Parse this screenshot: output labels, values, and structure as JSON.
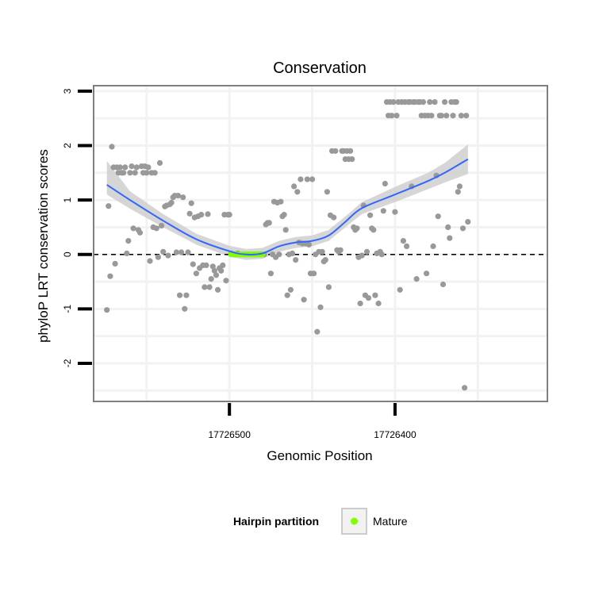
{
  "chart_data": {
    "type": "scatter",
    "title": "Conservation",
    "xlabel": "Genomic Position",
    "ylabel": "phyloP LRT conservation scores",
    "x_reversed": true,
    "xlim": [
      17726582,
      17726308
    ],
    "ylim": [
      -2.7,
      3.1
    ],
    "x_ticks": [
      17726500,
      17726400
    ],
    "y_ticks": [
      -2,
      -1,
      0,
      1,
      2,
      3
    ],
    "grid": true,
    "reference_line": {
      "y": 0,
      "style": "dashed",
      "color": "#000000"
    },
    "colors": {
      "points": "#999999",
      "smooth": "#3366ff",
      "ribbon": "#cccccc",
      "mature": "#7fff00",
      "panel_border": "#7f7f7f",
      "grid": "#f2f2f2"
    },
    "series": [
      {
        "type": "scatter",
        "points": [
          [
            17726574,
            -1.02
          ],
          [
            17726573,
            0.89
          ],
          [
            17726572,
            -0.4
          ],
          [
            17726571,
            1.98
          ],
          [
            17726570,
            1.6
          ],
          [
            17726569,
            -0.17
          ],
          [
            17726568,
            1.6
          ],
          [
            17726567,
            1.5
          ],
          [
            17726566,
            1.6
          ],
          [
            17726565,
            1.5
          ],
          [
            17726564,
            1.5
          ],
          [
            17726563,
            1.6
          ],
          [
            17726562,
            0.02
          ],
          [
            17726561,
            0.25
          ],
          [
            17726560,
            1.5
          ],
          [
            17726559,
            1.62
          ],
          [
            17726558,
            0.48
          ],
          [
            17726557,
            1.5
          ],
          [
            17726556,
            1.6
          ],
          [
            17726555,
            0.45
          ],
          [
            17726554,
            0.4
          ],
          [
            17726553,
            1.62
          ],
          [
            17726552,
            1.5
          ],
          [
            17726551,
            1.62
          ],
          [
            17726550,
            1.5
          ],
          [
            17726549,
            1.6
          ],
          [
            17726548,
            -0.12
          ],
          [
            17726547,
            1.5
          ],
          [
            17726546,
            0.5
          ],
          [
            17726545,
            1.5
          ],
          [
            17726544,
            0.48
          ],
          [
            17726543,
            -0.05
          ],
          [
            17726542,
            1.68
          ],
          [
            17726541,
            0.53
          ],
          [
            17726540,
            0.05
          ],
          [
            17726539,
            0.88
          ],
          [
            17726538,
            0.9
          ],
          [
            17726537,
            -0.02
          ],
          [
            17726536,
            0.92
          ],
          [
            17726535,
            0.95
          ],
          [
            17726534,
            1.05
          ],
          [
            17726533,
            1.08
          ],
          [
            17726532,
            0.04
          ],
          [
            17726531,
            1.08
          ],
          [
            17726530,
            -0.75
          ],
          [
            17726529,
            0.04
          ],
          [
            17726528,
            1.05
          ],
          [
            17726527,
            -1.0
          ],
          [
            17726526,
            -0.75
          ],
          [
            17726525,
            0.04
          ],
          [
            17726524,
            0.75
          ],
          [
            17726523,
            0.94
          ],
          [
            17726522,
            -0.18
          ],
          [
            17726521,
            0.68
          ],
          [
            17726520,
            -0.35
          ],
          [
            17726519,
            0.7
          ],
          [
            17726518,
            -0.25
          ],
          [
            17726517,
            0.73
          ],
          [
            17726516,
            -0.2
          ],
          [
            17726515,
            -0.6
          ],
          [
            17726514,
            -0.2
          ],
          [
            17726513,
            0.74
          ],
          [
            17726512,
            -0.6
          ],
          [
            17726511,
            -0.45
          ],
          [
            17726510,
            -0.22
          ],
          [
            17726509,
            -0.3
          ],
          [
            17726508,
            -0.38
          ],
          [
            17726507,
            -0.65
          ],
          [
            17726506,
            -0.25
          ],
          [
            17726505,
            -0.3
          ],
          [
            17726504,
            -0.2
          ],
          [
            17726503,
            0.73
          ],
          [
            17726502,
            -0.48
          ],
          [
            17726501,
            0.73
          ],
          [
            17726500,
            0.73
          ],
          [
            17726499,
            0.02
          ],
          [
            17726498,
            0.0
          ],
          [
            17726497,
            0.0
          ],
          [
            17726496,
            0.0
          ],
          [
            17726495,
            0.02
          ],
          [
            17726494,
            0.0
          ],
          [
            17726493,
            0.0
          ],
          [
            17726492,
            0.0
          ],
          [
            17726491,
            0.0
          ],
          [
            17726490,
            0.0
          ],
          [
            17726489,
            0.0
          ],
          [
            17726488,
            0.0
          ],
          [
            17726487,
            0.0
          ],
          [
            17726486,
            0.0
          ],
          [
            17726485,
            0.0
          ],
          [
            17726484,
            0.0
          ],
          [
            17726483,
            0.0
          ],
          [
            17726482,
            0.0
          ],
          [
            17726481,
            0.0
          ],
          [
            17726480,
            0.0
          ],
          [
            17726479,
            0.0
          ],
          [
            17726478,
            0.55
          ],
          [
            17726477,
            0.58
          ],
          [
            17726476,
            0.58
          ],
          [
            17726475,
            -0.35
          ],
          [
            17726474,
            0.0
          ],
          [
            17726473,
            0.97
          ],
          [
            17726472,
            -0.05
          ],
          [
            17726471,
            0.95
          ],
          [
            17726470,
            0.0
          ],
          [
            17726469,
            0.97
          ],
          [
            17726468,
            0.7
          ],
          [
            17726467,
            0.73
          ],
          [
            17726466,
            0.45
          ],
          [
            17726465,
            -0.75
          ],
          [
            17726464,
            0.0
          ],
          [
            17726463,
            -0.65
          ],
          [
            17726462,
            0.02
          ],
          [
            17726461,
            1.25
          ],
          [
            17726460,
            -0.1
          ],
          [
            17726459,
            1.15
          ],
          [
            17726458,
            0.22
          ],
          [
            17726457,
            1.38
          ],
          [
            17726456,
            0.2
          ],
          [
            17726455,
            -0.83
          ],
          [
            17726454,
            0.2
          ],
          [
            17726453,
            1.38
          ],
          [
            17726452,
            0.18
          ],
          [
            17726451,
            -0.35
          ],
          [
            17726450,
            1.38
          ],
          [
            17726449,
            -0.35
          ],
          [
            17726448,
            0.0
          ],
          [
            17726447,
            -1.42
          ],
          [
            17726446,
            0.05
          ],
          [
            17726445,
            -0.97
          ],
          [
            17726444,
            0.05
          ],
          [
            17726443,
            -0.13
          ],
          [
            17726442,
            -0.1
          ],
          [
            17726441,
            1.15
          ],
          [
            17726440,
            -0.6
          ],
          [
            17726439,
            0.72
          ],
          [
            17726438,
            1.9
          ],
          [
            17726437,
            0.68
          ],
          [
            17726436,
            1.9
          ],
          [
            17726435,
            0.08
          ],
          [
            17726434,
            0.05
          ],
          [
            17726433,
            0.08
          ],
          [
            17726432,
            1.9
          ],
          [
            17726431,
            1.9
          ],
          [
            17726430,
            1.75
          ],
          [
            17726429,
            1.9
          ],
          [
            17726428,
            1.75
          ],
          [
            17726427,
            1.9
          ],
          [
            17726426,
            1.75
          ],
          [
            17726425,
            0.5
          ],
          [
            17726424,
            0.45
          ],
          [
            17726423,
            0.48
          ],
          [
            17726422,
            -0.05
          ],
          [
            17726421,
            -0.9
          ],
          [
            17726420,
            -0.02
          ],
          [
            17726419,
            0.9
          ],
          [
            17726418,
            -0.75
          ],
          [
            17726417,
            0.05
          ],
          [
            17726416,
            -0.8
          ],
          [
            17726415,
            0.72
          ],
          [
            17726414,
            0.48
          ],
          [
            17726413,
            0.45
          ],
          [
            17726412,
            -0.75
          ],
          [
            17726411,
            0.02
          ],
          [
            17726410,
            -0.9
          ],
          [
            17726409,
            0.05
          ],
          [
            17726408,
            0.0
          ],
          [
            17726407,
            0.8
          ],
          [
            17726406,
            1.3
          ],
          [
            17726405,
            2.8
          ],
          [
            17726404,
            2.55
          ],
          [
            17726403,
            2.8
          ],
          [
            17726402,
            2.55
          ],
          [
            17726401,
            2.8
          ],
          [
            17726400,
            0.78
          ],
          [
            17726399,
            2.55
          ],
          [
            17726398,
            2.8
          ],
          [
            17726397,
            -0.65
          ],
          [
            17726396,
            2.8
          ],
          [
            17726395,
            0.25
          ],
          [
            17726394,
            2.8
          ],
          [
            17726393,
            0.15
          ],
          [
            17726392,
            2.8
          ],
          [
            17726391,
            2.8
          ],
          [
            17726390,
            1.25
          ],
          [
            17726389,
            2.8
          ],
          [
            17726388,
            2.8
          ],
          [
            17726387,
            -0.45
          ],
          [
            17726386,
            2.8
          ],
          [
            17726385,
            2.8
          ],
          [
            17726384,
            2.55
          ],
          [
            17726383,
            2.8
          ],
          [
            17726382,
            2.55
          ],
          [
            17726381,
            -0.35
          ],
          [
            17726380,
            2.55
          ],
          [
            17726379,
            2.8
          ],
          [
            17726378,
            2.55
          ],
          [
            17726377,
            0.15
          ],
          [
            17726376,
            2.8
          ],
          [
            17726375,
            1.45
          ],
          [
            17726374,
            0.7
          ],
          [
            17726373,
            2.55
          ],
          [
            17726372,
            2.55
          ],
          [
            17726371,
            -0.55
          ],
          [
            17726370,
            2.8
          ],
          [
            17726369,
            2.55
          ],
          [
            17726368,
            0.5
          ],
          [
            17726367,
            0.3
          ],
          [
            17726366,
            2.8
          ],
          [
            17726365,
            2.55
          ],
          [
            17726364,
            2.8
          ],
          [
            17726363,
            2.8
          ],
          [
            17726362,
            1.15
          ],
          [
            17726361,
            1.25
          ],
          [
            17726360,
            2.55
          ],
          [
            17726359,
            0.48
          ],
          [
            17726358,
            -2.45
          ],
          [
            17726357,
            2.55
          ],
          [
            17726356,
            0.6
          ]
        ]
      },
      {
        "type": "scatter",
        "name": "Mature",
        "points": [
          [
            17726499,
            0.0
          ],
          [
            17726498,
            0.0
          ],
          [
            17726497,
            0.0
          ],
          [
            17726496,
            0.0
          ],
          [
            17726495,
            0.0
          ],
          [
            17726494,
            0.0
          ],
          [
            17726493,
            0.0
          ],
          [
            17726492,
            0.0
          ],
          [
            17726491,
            0.0
          ],
          [
            17726490,
            0.0
          ],
          [
            17726489,
            0.0
          ],
          [
            17726488,
            0.0
          ],
          [
            17726487,
            0.0
          ],
          [
            17726486,
            0.0
          ],
          [
            17726485,
            0.0
          ],
          [
            17726484,
            0.0
          ],
          [
            17726483,
            0.0
          ],
          [
            17726482,
            0.0
          ],
          [
            17726481,
            0.0
          ],
          [
            17726480,
            0.0
          ]
        ]
      },
      {
        "type": "line",
        "points": [
          [
            17726574,
            1.28
          ],
          [
            17726560,
            1.0
          ],
          [
            17726540,
            0.62
          ],
          [
            17726520,
            0.28
          ],
          [
            17726500,
            0.06
          ],
          [
            17726490,
            0.0
          ],
          [
            17726480,
            0.02
          ],
          [
            17726470,
            0.15
          ],
          [
            17726460,
            0.22
          ],
          [
            17726450,
            0.25
          ],
          [
            17726440,
            0.35
          ],
          [
            17726430,
            0.6
          ],
          [
            17726420,
            0.85
          ],
          [
            17726400,
            1.1
          ],
          [
            17726380,
            1.35
          ],
          [
            17726370,
            1.5
          ],
          [
            17726356,
            1.75
          ]
        ],
        "band": [
          [
            17726574,
            1.1,
            1.72
          ],
          [
            17726560,
            0.84,
            1.16
          ],
          [
            17726540,
            0.5,
            0.74
          ],
          [
            17726520,
            0.18,
            0.38
          ],
          [
            17726500,
            -0.04,
            0.16
          ],
          [
            17726490,
            -0.1,
            0.1
          ],
          [
            17726480,
            -0.08,
            0.12
          ],
          [
            17726470,
            0.05,
            0.25
          ],
          [
            17726460,
            0.12,
            0.32
          ],
          [
            17726450,
            0.15,
            0.35
          ],
          [
            17726440,
            0.25,
            0.45
          ],
          [
            17726430,
            0.5,
            0.7
          ],
          [
            17726420,
            0.74,
            0.96
          ],
          [
            17726400,
            0.96,
            1.24
          ],
          [
            17726380,
            1.2,
            1.5
          ],
          [
            17726370,
            1.32,
            1.68
          ],
          [
            17726356,
            1.48,
            2.02
          ]
        ]
      }
    ],
    "legend": {
      "title": "Hairpin partition",
      "position": "bottom",
      "entries": [
        {
          "label": "Mature",
          "color": "#7fff00"
        }
      ]
    }
  }
}
